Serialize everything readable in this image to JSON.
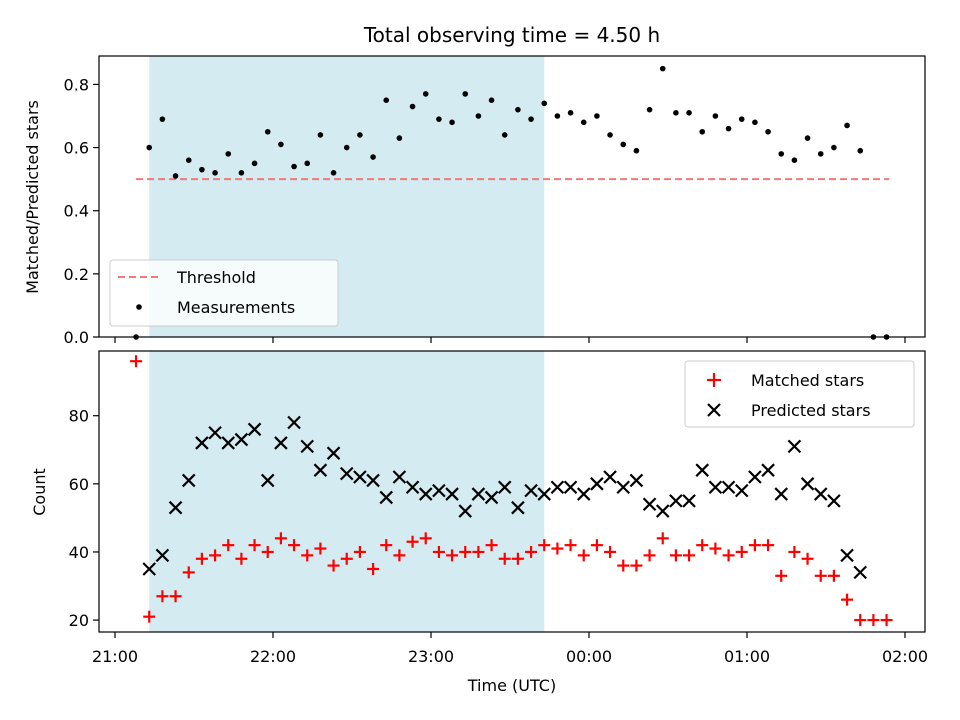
{
  "chart_data": [
    {
      "type": "scatter",
      "title": "Total observing time = 4.50 h",
      "xlabel": "",
      "ylabel": "Matched/Predicted stars",
      "ylim": [
        0,
        0.89
      ],
      "yticks": [
        "0.0",
        "0.2",
        "0.4",
        "0.6",
        "0.8"
      ],
      "ytick_values": [
        0.0,
        0.2,
        0.4,
        0.6,
        0.8
      ],
      "xlim": [
        "21:00",
        "02:00"
      ],
      "shaded_interval": [
        "21:13",
        "23:43"
      ],
      "shaded_color": "#d3ebf1",
      "legend": {
        "placement": "lower-left",
        "entries": [
          {
            "label": "Threshold",
            "style": "dashed-line",
            "color": "#f07a7a"
          },
          {
            "label": "Measurements",
            "style": "dot",
            "color": "#000000"
          }
        ]
      },
      "threshold": {
        "name": "Threshold",
        "y": 0.5,
        "x_start": "21:08",
        "x_end": "01:54",
        "color": "#f07a7a"
      },
      "measurements": {
        "name": "Measurements",
        "x": [
          "21:08",
          "21:13",
          "21:18",
          "21:23",
          "21:28",
          "21:33",
          "21:38",
          "21:43",
          "21:48",
          "21:53",
          "21:58",
          "22:03",
          "22:08",
          "22:13",
          "22:18",
          "22:23",
          "22:28",
          "22:33",
          "22:38",
          "22:43",
          "22:48",
          "22:53",
          "22:58",
          "23:03",
          "23:08",
          "23:13",
          "23:18",
          "23:23",
          "23:28",
          "23:33",
          "23:38",
          "23:43",
          "23:48",
          "23:53",
          "23:58",
          "00:03",
          "00:08",
          "00:13",
          "00:18",
          "00:23",
          "00:28",
          "00:33",
          "00:38",
          "00:43",
          "00:48",
          "00:53",
          "00:58",
          "01:03",
          "01:08",
          "01:13",
          "01:18",
          "01:23",
          "01:28",
          "01:33",
          "01:38",
          "01:43",
          "01:48",
          "01:53"
        ],
        "y": [
          0.0,
          0.6,
          0.69,
          0.51,
          0.56,
          0.53,
          0.52,
          0.58,
          0.52,
          0.55,
          0.65,
          0.61,
          0.54,
          0.55,
          0.64,
          0.52,
          0.6,
          0.64,
          0.57,
          0.75,
          0.63,
          0.73,
          0.77,
          0.69,
          0.68,
          0.77,
          0.7,
          0.75,
          0.64,
          0.72,
          0.69,
          0.74,
          0.7,
          0.71,
          0.68,
          0.7,
          0.64,
          0.61,
          0.59,
          0.72,
          0.85,
          0.71,
          0.71,
          0.65,
          0.7,
          0.66,
          0.69,
          0.68,
          0.65,
          0.58,
          0.56,
          0.63,
          0.58,
          0.6,
          0.67,
          0.59,
          0.0,
          0.0
        ],
        "color": "#000000"
      }
    },
    {
      "type": "scatter",
      "title": "",
      "xlabel": "Time (UTC)",
      "ylabel": "Count",
      "ylim": [
        16.5,
        99
      ],
      "yticks": [
        "20",
        "40",
        "60",
        "80"
      ],
      "ytick_values": [
        20,
        40,
        60,
        80
      ],
      "xticks": [
        "21:00",
        "22:00",
        "23:00",
        "00:00",
        "01:00",
        "02:00"
      ],
      "shaded_interval": [
        "21:13",
        "23:43"
      ],
      "shaded_color": "#d3ebf1",
      "legend": {
        "placement": "top-right",
        "entries": [
          {
            "label": "Matched stars",
            "style": "plus",
            "color": "#ff0000"
          },
          {
            "label": "Predicted stars",
            "style": "x",
            "color": "#000000"
          }
        ]
      },
      "x": [
        "21:08",
        "21:13",
        "21:18",
        "21:23",
        "21:28",
        "21:33",
        "21:38",
        "21:43",
        "21:48",
        "21:53",
        "21:58",
        "22:03",
        "22:08",
        "22:13",
        "22:18",
        "22:23",
        "22:28",
        "22:33",
        "22:38",
        "22:43",
        "22:48",
        "22:53",
        "22:58",
        "23:03",
        "23:08",
        "23:13",
        "23:18",
        "23:23",
        "23:28",
        "23:33",
        "23:38",
        "23:43",
        "23:48",
        "23:53",
        "23:58",
        "00:03",
        "00:08",
        "00:13",
        "00:18",
        "00:23",
        "00:28",
        "00:33",
        "00:38",
        "00:43",
        "00:48",
        "00:53",
        "00:58",
        "01:03",
        "01:08",
        "01:13",
        "01:18",
        "01:23",
        "01:28",
        "01:33",
        "01:38",
        "01:43",
        "01:48",
        "01:53"
      ],
      "series": [
        {
          "name": "Matched stars",
          "marker": "plus",
          "color": "#ff0000",
          "values": [
            96,
            21,
            27,
            27,
            34,
            38,
            39,
            42,
            38,
            42,
            40,
            44,
            42,
            39,
            41,
            36,
            38,
            40,
            35,
            42,
            39,
            43,
            44,
            40,
            39,
            40,
            40,
            42,
            38,
            38,
            40,
            42,
            41,
            42,
            39,
            42,
            40,
            36,
            36,
            39,
            44,
            39,
            39,
            42,
            41,
            39,
            40,
            42,
            42,
            33,
            40,
            38,
            33,
            33,
            26,
            20,
            20,
            20
          ]
        },
        {
          "name": "Predicted stars",
          "marker": "x",
          "color": "#000000",
          "values": [
            null,
            35,
            39,
            53,
            61,
            72,
            75,
            72,
            73,
            76,
            61,
            72,
            78,
            71,
            64,
            69,
            63,
            62,
            61,
            56,
            62,
            59,
            57,
            58,
            57,
            52,
            57,
            56,
            59,
            53,
            58,
            57,
            59,
            59,
            57,
            60,
            62,
            59,
            61,
            54,
            52,
            55,
            55,
            64,
            59,
            59,
            58,
            62,
            64,
            57,
            71,
            60,
            57,
            55,
            39,
            34,
            null,
            null
          ]
        }
      ]
    }
  ]
}
